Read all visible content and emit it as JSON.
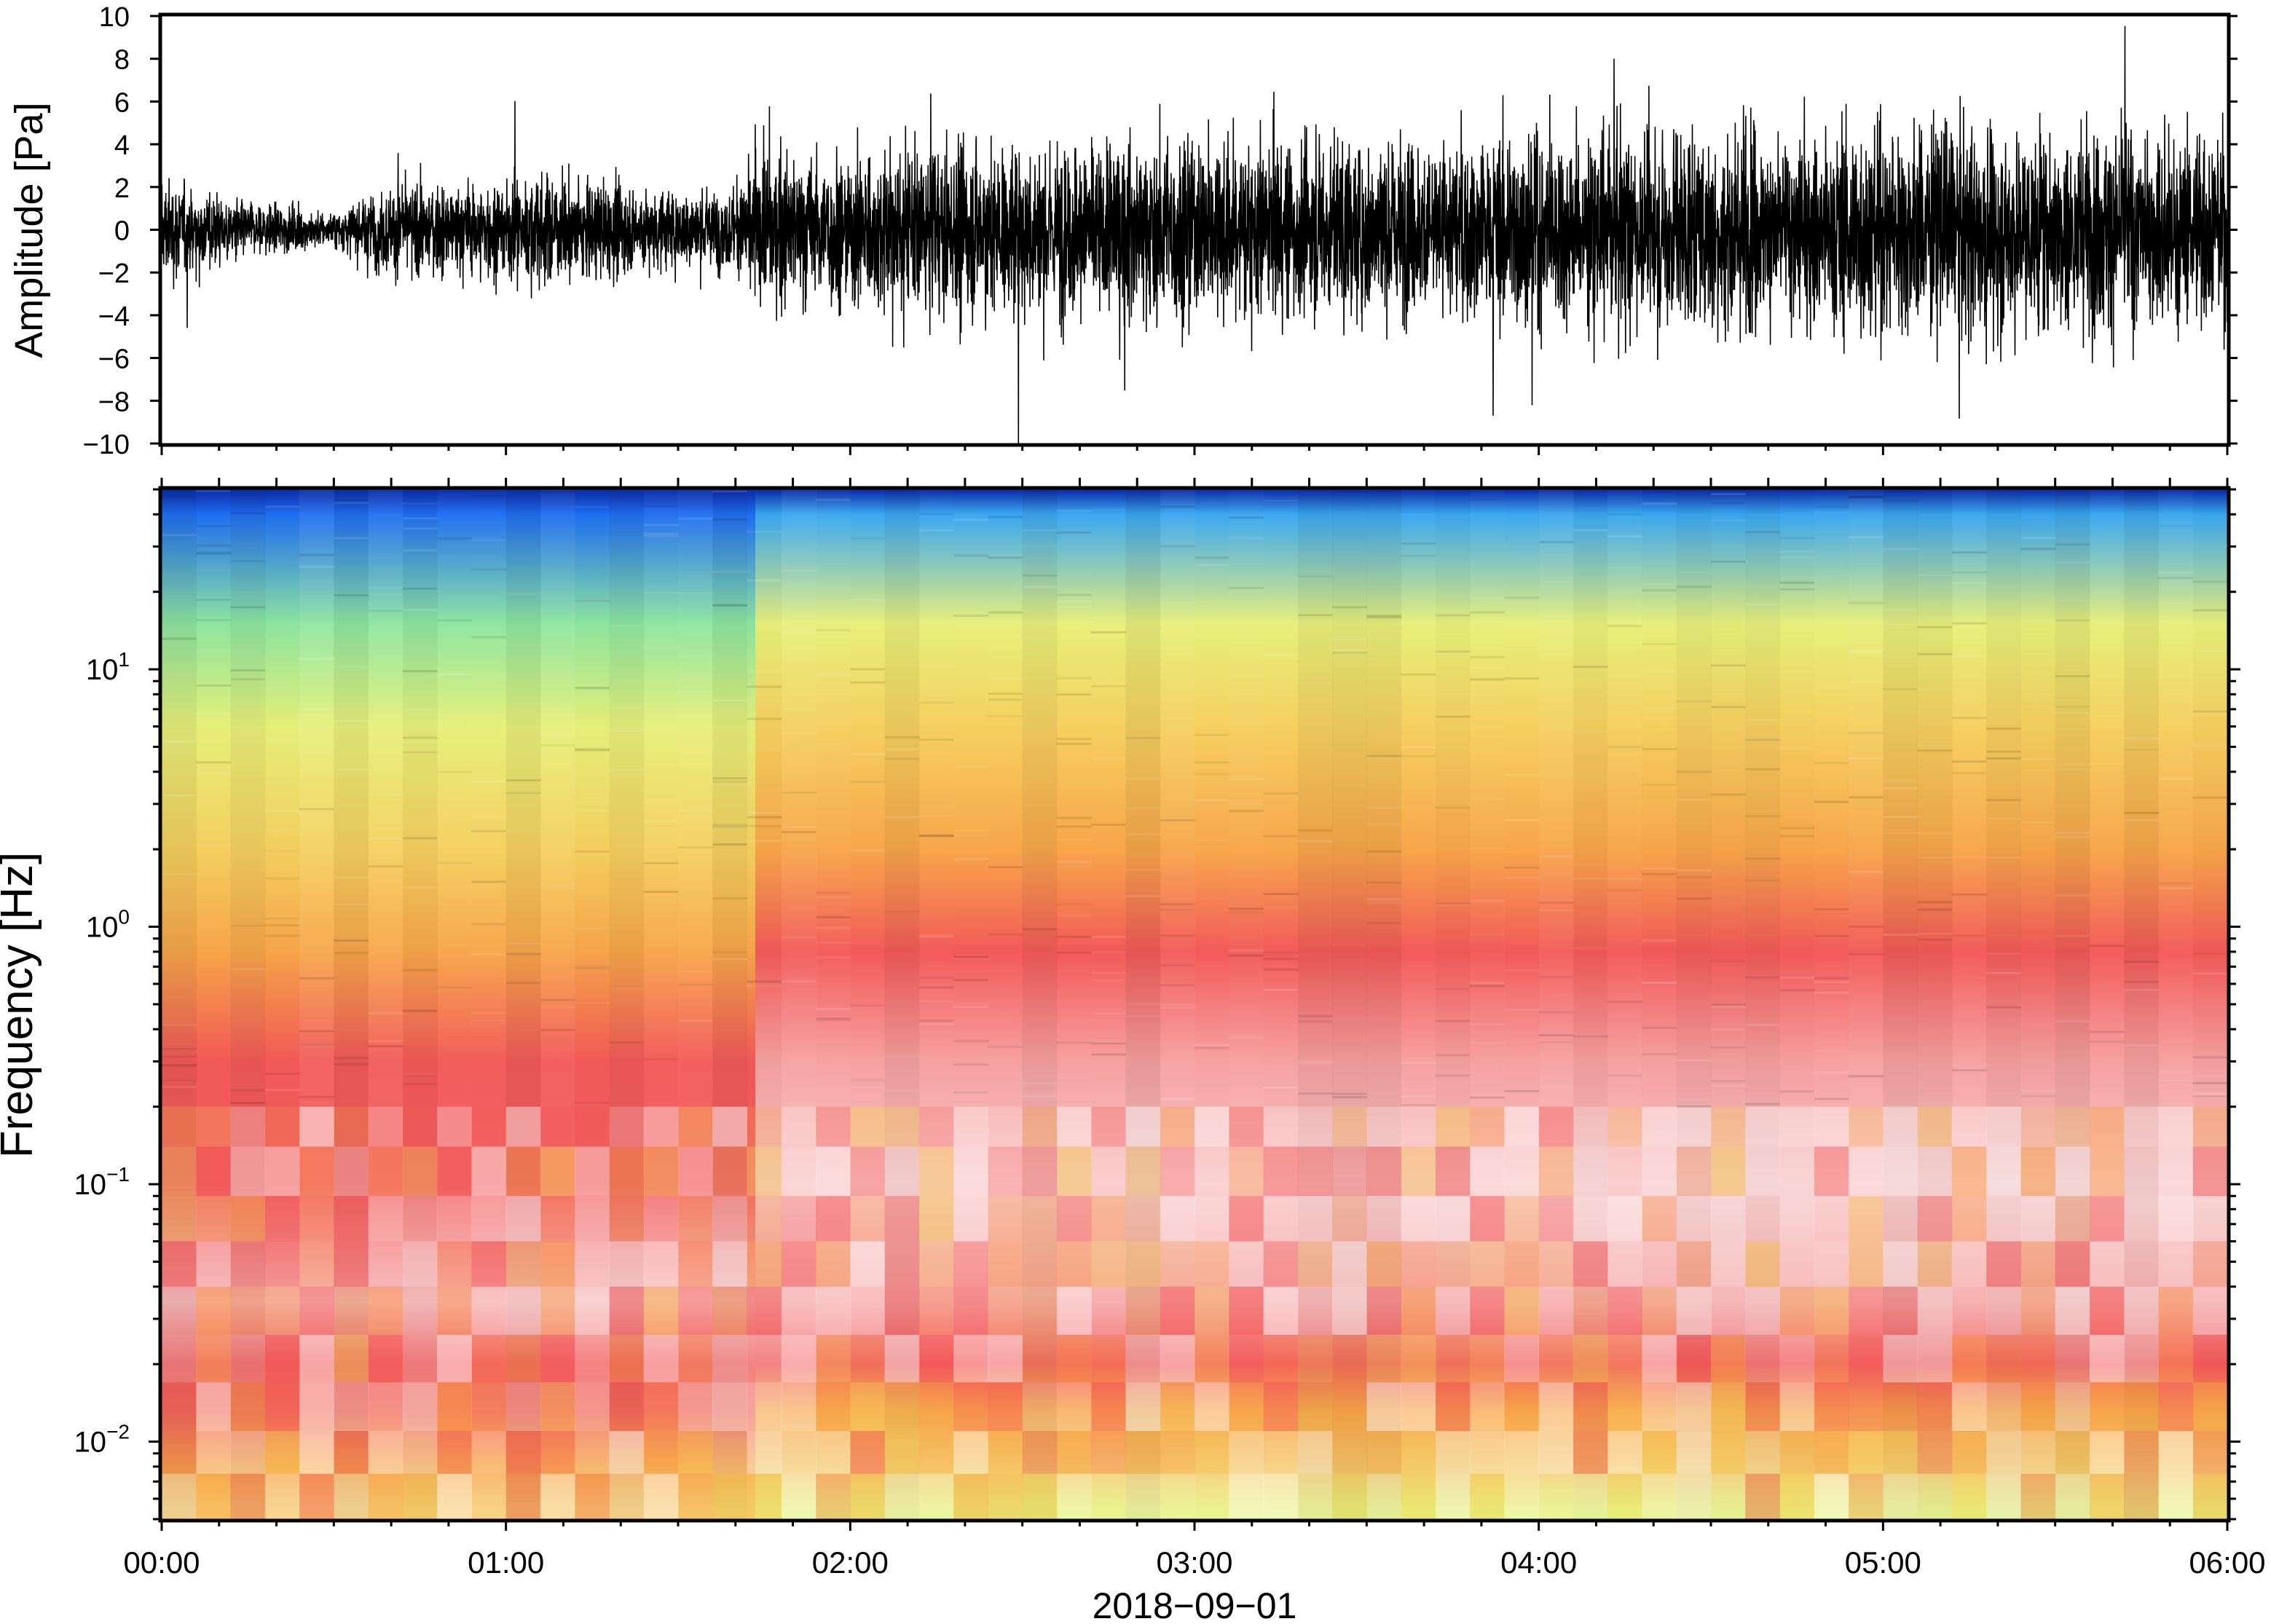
{
  "chart_data": [
    {
      "type": "line",
      "panel": "waveform",
      "ylabel": "Amplitude [Pa]",
      "ylim": [
        -10,
        10
      ],
      "y_ticks": [
        10,
        8,
        6,
        4,
        2,
        0,
        -2,
        -4,
        -6,
        -8,
        -10
      ],
      "y_tick_labels": [
        "10",
        "8",
        "6",
        "4",
        "2",
        "0",
        "−2",
        "−4",
        "−6",
        "−8",
        "−10"
      ],
      "xlim": [
        "00:00",
        "06:00"
      ],
      "series": [
        {
          "color": "#000000",
          "envelope_hours": [
            0.0,
            0.25,
            0.5,
            0.65,
            0.85,
            1.1,
            1.4,
            1.65,
            1.75,
            2.0,
            2.5,
            3.0,
            3.5,
            4.0,
            4.5,
            5.0,
            5.5,
            6.0
          ],
          "envelope_amplitude_pa": [
            3.0,
            1.6,
            1.0,
            2.5,
            2.6,
            3.2,
            2.4,
            2.2,
            4.2,
            4.6,
            5.0,
            5.3,
            5.0,
            5.4,
            5.8,
            6.0,
            6.0,
            5.5
          ]
        }
      ]
    },
    {
      "type": "heatmap",
      "panel": "spectrogram",
      "ylabel": "Frequency [Hz]",
      "y_scale": "log",
      "ylim": [
        0.005,
        50
      ],
      "y_ticks": [
        0.01,
        0.1,
        1,
        10
      ],
      "y_tick_labels": [
        {
          "base": "10",
          "exp": "−2"
        },
        {
          "base": "10",
          "exp": "−1"
        },
        {
          "base": "10",
          "exp": "0"
        },
        {
          "base": "10",
          "exp": "1"
        }
      ],
      "xlabel": "2018−09−01",
      "xlim": [
        "00:00",
        "06:00"
      ],
      "x_ticks": [
        "00:00",
        "01:00",
        "02:00",
        "03:00",
        "04:00",
        "05:00",
        "06:00"
      ],
      "colormap": [
        "#f07a3a",
        "#f7a64a",
        "#f5d05f",
        "#e7f07a",
        "#8ee6a0",
        "#5fd4dc",
        "#2aa0ee",
        "#1456e0",
        "#0a1e9a"
      ],
      "band_hz": [
        0.0055,
        0.008,
        0.013,
        0.02,
        0.035,
        0.1,
        0.3,
        0.8,
        2,
        6,
        15,
        40,
        50
      ],
      "band_colors_before_0145": [
        "#f6c86b",
        "#f7a64a",
        "#f26a5a",
        "#f25a5a",
        "#f7a8a8",
        "#f25f5f",
        "#f25a58",
        "#f7a64a",
        "#f5d05f",
        "#e7f07a",
        "#8ee6a0",
        "#1f6ff0",
        "#0a2aa8"
      ],
      "band_colors_after_0145": [
        "#e7f07a",
        "#f6c86b",
        "#f7a64a",
        "#f25a5a",
        "#f6a0a0",
        "#f9c6c6",
        "#f6a0a0",
        "#f25a58",
        "#f7a64a",
        "#f5d05f",
        "#e7f07a",
        "#3aa8f0",
        "#0a2aa8"
      ]
    }
  ]
}
